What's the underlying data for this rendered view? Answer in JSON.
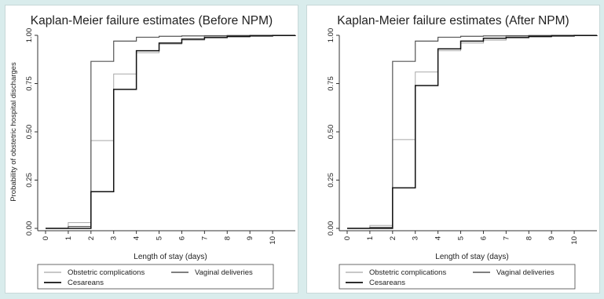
{
  "chart_data": [
    {
      "type": "line",
      "step": true,
      "title": "Kaplan-Meier failure estimates (Before NPM)",
      "xlabel": "Length of stay (days)",
      "ylabel": "Probability of obstetric hospital discharges",
      "xlim": [
        0,
        11
      ],
      "ylim": [
        0,
        1
      ],
      "xticks": [
        "0",
        "1",
        "2",
        "3",
        "4",
        "5",
        "6",
        "7",
        "8",
        "9",
        "10"
      ],
      "yticks": [
        "0.00",
        "0.25",
        "0.50",
        "0.75",
        "1.00"
      ],
      "grid": false,
      "legend_position": "bottom",
      "series": [
        {
          "name": "Obstetric complications",
          "x": [
            0,
            1,
            2,
            3,
            4,
            5,
            6,
            7,
            8,
            9,
            10,
            11
          ],
          "y": [
            0.0,
            0.03,
            0.455,
            0.8,
            0.91,
            0.955,
            0.975,
            0.985,
            0.99,
            0.995,
            0.998,
            1.0
          ]
        },
        {
          "name": "Vaginal deliveries",
          "x": [
            0,
            1,
            2,
            3,
            4,
            5,
            6,
            7,
            8,
            9,
            10,
            11
          ],
          "y": [
            0.0,
            0.01,
            0.865,
            0.97,
            0.99,
            0.995,
            0.997,
            0.998,
            0.999,
            1.0,
            1.0,
            1.0
          ]
        },
        {
          "name": "Cesareans",
          "x": [
            0,
            1,
            2,
            3,
            4,
            5,
            6,
            7,
            8,
            9,
            10,
            11
          ],
          "y": [
            0.0,
            0.0,
            0.19,
            0.72,
            0.92,
            0.96,
            0.98,
            0.99,
            0.995,
            0.997,
            0.999,
            1.0
          ]
        }
      ]
    },
    {
      "type": "line",
      "step": true,
      "title": "Kaplan-Meier failure estimates (After NPM)",
      "xlabel": "Length of stay (days)",
      "ylabel": "",
      "xlim": [
        0,
        11
      ],
      "ylim": [
        0,
        1
      ],
      "xticks": [
        "0",
        "1",
        "2",
        "3",
        "4",
        "5",
        "6",
        "7",
        "8",
        "9",
        "10"
      ],
      "yticks": [
        "0.00",
        "0.25",
        "0.50",
        "0.75",
        "1.00"
      ],
      "grid": false,
      "legend_position": "bottom",
      "series": [
        {
          "name": "Obstetric complications",
          "x": [
            0,
            1,
            2,
            3,
            4,
            5,
            6,
            7,
            8,
            9,
            10,
            11
          ],
          "y": [
            0.0,
            0.015,
            0.46,
            0.81,
            0.92,
            0.96,
            0.975,
            0.985,
            0.99,
            0.995,
            0.998,
            1.0
          ]
        },
        {
          "name": "Vaginal deliveries",
          "x": [
            0,
            1,
            2,
            3,
            4,
            5,
            6,
            7,
            8,
            9,
            10,
            11
          ],
          "y": [
            0.0,
            0.005,
            0.865,
            0.97,
            0.99,
            0.995,
            0.997,
            0.998,
            0.999,
            1.0,
            1.0,
            1.0
          ]
        },
        {
          "name": "Cesareans",
          "x": [
            0,
            1,
            2,
            3,
            4,
            5,
            6,
            7,
            8,
            9,
            10,
            11
          ],
          "y": [
            0.0,
            0.0,
            0.21,
            0.74,
            0.93,
            0.97,
            0.985,
            0.99,
            0.995,
            0.997,
            0.999,
            1.0
          ]
        }
      ]
    }
  ],
  "colors": {
    "background": "#d9ecec",
    "panel": "#ffffff",
    "obstetric_complications": "#a8a8a8",
    "vaginal_deliveries": "#555555",
    "cesareans": "#111111"
  }
}
